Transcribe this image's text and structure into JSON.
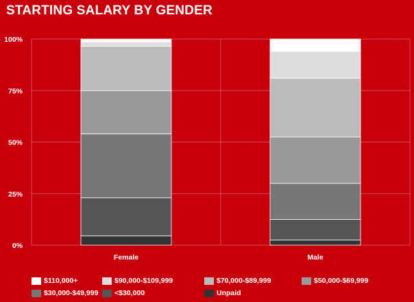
{
  "title": "STARTING SALARY BY GENDER",
  "chart_data": {
    "type": "bar",
    "stacked": true,
    "title": "STARTING SALARY BY GENDER",
    "categories": [
      "Female",
      "Male"
    ],
    "ylim": [
      0,
      100
    ],
    "yticks": [
      0,
      25,
      50,
      75,
      100
    ],
    "ytick_labels": [
      "0%",
      "25%",
      "50%",
      "75%",
      "100%"
    ],
    "grid": true,
    "legend_position": "bottom",
    "series": [
      {
        "name": "Unpaid",
        "values": [
          4.5,
          2.5
        ],
        "color": "#333333"
      },
      {
        "name": "<$30,000",
        "values": [
          18.5,
          10.0
        ],
        "color": "#555555"
      },
      {
        "name": "$30,000-$49,999",
        "values": [
          31.0,
          17.5
        ],
        "color": "#777777"
      },
      {
        "name": "$50,000-$69,999",
        "values": [
          21.0,
          22.5
        ],
        "color": "#999999"
      },
      {
        "name": "$70,000-$89,999",
        "values": [
          21.5,
          28.5
        ],
        "color": "#bbbbbb"
      },
      {
        "name": "$90,000-$109,999",
        "values": [
          2.0,
          13.0
        ],
        "color": "#dddddd"
      },
      {
        "name": "$110,000+",
        "values": [
          1.5,
          6.0
        ],
        "color": "#ffffff"
      }
    ],
    "legend_order": [
      "$110,000+",
      "$90,000-$109,999",
      "$70,000-$89,999",
      "$50,000-$69,999",
      "$30,000-$49,999",
      "<$30,000",
      "Unpaid"
    ]
  }
}
